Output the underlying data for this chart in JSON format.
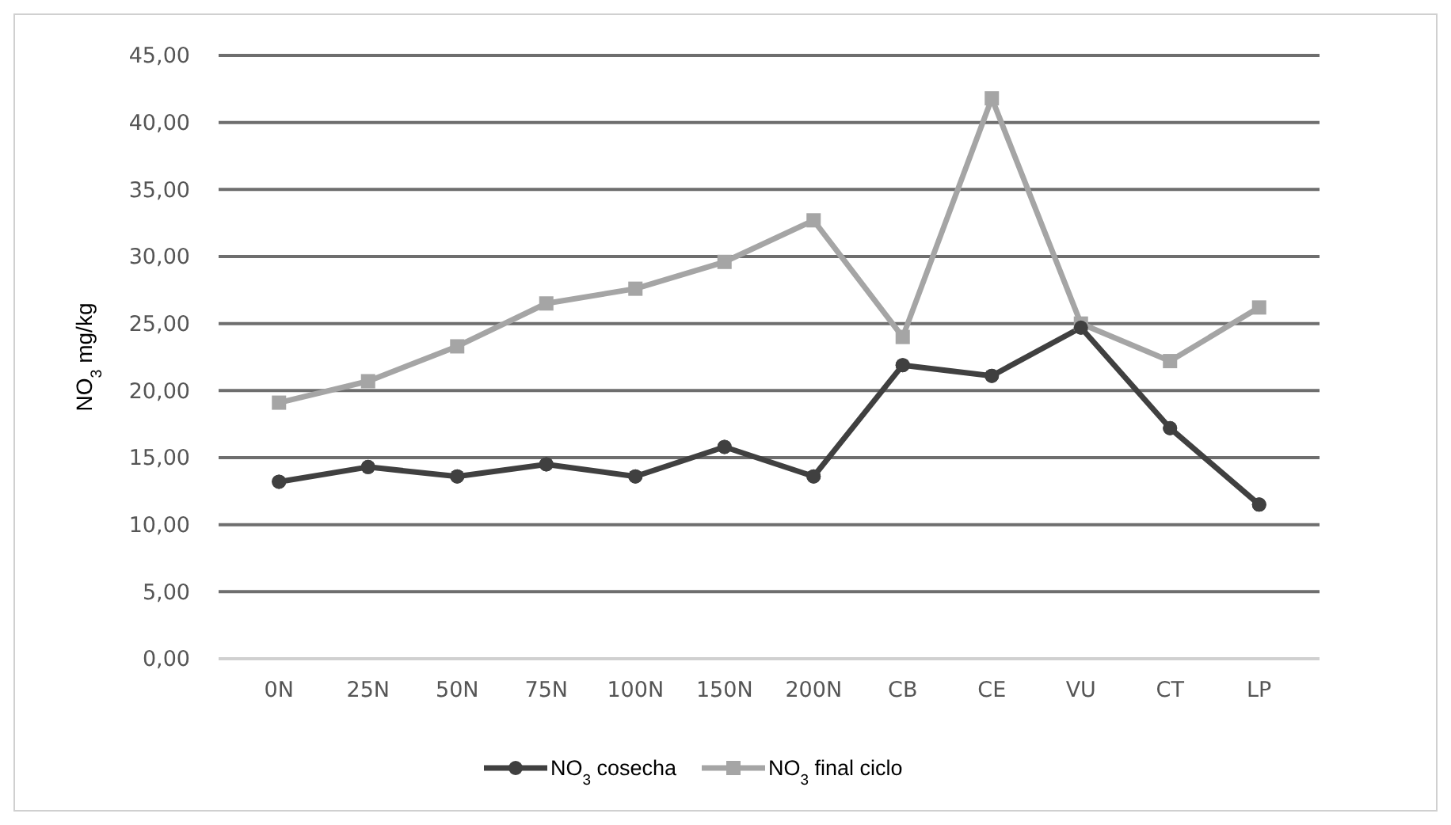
{
  "chart_data": {
    "type": "line",
    "ylabel": "NO$_{3}$ mg/kg",
    "categories": [
      "0N",
      "25N",
      "50N",
      "75N",
      "100N",
      "150N",
      "200N",
      "CB",
      "CE",
      "VU",
      "CT",
      "LP"
    ],
    "series": [
      {
        "name": "NO$_{3}$ cosecha",
        "color": "#404040",
        "marker": "circle",
        "values": [
          13.2,
          14.3,
          13.6,
          14.5,
          13.6,
          15.8,
          13.6,
          21.9,
          21.1,
          24.7,
          17.2,
          11.5
        ]
      },
      {
        "name": "NO$_{3}$ final ciclo",
        "color": "#a5a5a5",
        "marker": "square",
        "values": [
          19.1,
          20.7,
          23.3,
          26.5,
          27.6,
          29.6,
          32.7,
          24.0,
          41.8,
          25.0,
          22.2,
          26.2
        ]
      }
    ],
    "ylim": [
      0,
      45
    ],
    "yticks": [
      {
        "value": 0,
        "label": "0,00"
      },
      {
        "value": 5,
        "label": "5,00"
      },
      {
        "value": 10,
        "label": "10,00"
      },
      {
        "value": 15,
        "label": "15,00"
      },
      {
        "value": 20,
        "label": "20,00"
      },
      {
        "value": 25,
        "label": "25,00"
      },
      {
        "value": 30,
        "label": "30,00"
      },
      {
        "value": 35,
        "label": "35,00"
      },
      {
        "value": 40,
        "label": "40,00"
      },
      {
        "value": 45,
        "label": "45,00"
      }
    ],
    "grid": "y",
    "legend": "bottom",
    "line_style": "solid"
  }
}
